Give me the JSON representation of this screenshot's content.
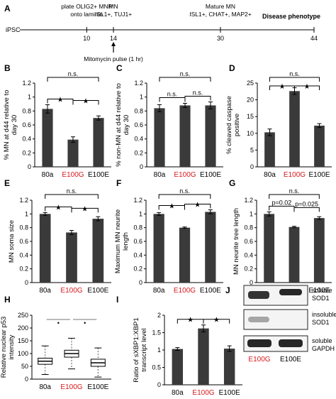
{
  "colors": {
    "bar": "#3a3a3a",
    "axis": "#000000",
    "mutant_label": "#d7191c",
    "box": "#ffffff"
  },
  "timeline": {
    "panel": "A",
    "start_label": "iPSC",
    "end_label": "Disease phenotype",
    "end_day": 44,
    "days": [
      10,
      14,
      30,
      44
    ],
    "labels_above": [
      {
        "day": 10,
        "lines": [
          "plate OLIG2+ MNP",
          "onto laminin"
        ]
      },
      {
        "day": 14,
        "lines": [
          "MN",
          "ISL1+, TUJ1+"
        ]
      },
      {
        "day": 30,
        "lines": [
          "Mature MN",
          "ISL1+, CHAT+, MAP2+"
        ]
      }
    ],
    "arrow_day": 14,
    "arrow_label": "Mitomycin pulse (1 hr)"
  },
  "chart_data": [
    {
      "panel": "B",
      "type": "bar",
      "ylabel_lines": [
        "% MN at d44 relative to",
        "day 30"
      ],
      "categories": [
        "80a",
        "E100G",
        "E100E"
      ],
      "mutant_index": 1,
      "values": [
        0.83,
        0.39,
        0.7
      ],
      "errors": [
        0.06,
        0.04,
        0.03
      ],
      "ylim": [
        0,
        1.2
      ],
      "ticks": [
        0,
        0.2,
        0.4,
        0.6,
        0.8,
        1.0,
        1.2
      ],
      "tick_labels": [
        "0",
        "0.2",
        "0.4",
        "0.6",
        "0.8",
        "1",
        "1.2"
      ],
      "brackets": [
        {
          "from": 0,
          "to": 1,
          "label": "★",
          "level": 1
        },
        {
          "from": 1,
          "to": 2,
          "label": "★",
          "level": 1
        },
        {
          "from": 0,
          "to": 2,
          "label": "n.s.",
          "level": 2
        }
      ]
    },
    {
      "panel": "C",
      "type": "bar",
      "ylabel_lines": [
        "% non-MN at d44 relative to",
        "day 30"
      ],
      "categories": [
        "80a",
        "E100G",
        "E100E"
      ],
      "mutant_index": 1,
      "values": [
        0.84,
        0.88,
        0.88
      ],
      "errors": [
        0.05,
        0.03,
        0.05
      ],
      "ylim": [
        0,
        1.2
      ],
      "ticks": [
        0,
        0.2,
        0.4,
        0.6,
        0.8,
        1.0,
        1.2
      ],
      "tick_labels": [
        "0",
        "0.2",
        "0.4",
        "0.6",
        "0.8",
        "1",
        "1.2"
      ],
      "brackets": [
        {
          "from": 0,
          "to": 1,
          "label": "n.s.",
          "level": 1
        },
        {
          "from": 1,
          "to": 2,
          "label": "n.s.",
          "level": 1
        },
        {
          "from": 0,
          "to": 2,
          "label": "n.s.",
          "level": 2
        }
      ]
    },
    {
      "panel": "D",
      "type": "bar",
      "ylabel_lines": [
        "% cleaved caspase",
        "positive"
      ],
      "categories": [
        "80a",
        "E100G",
        "E100E"
      ],
      "mutant_index": 1,
      "values": [
        10.3,
        22.6,
        12.3
      ],
      "errors": [
        1.0,
        1.0,
        0.6
      ],
      "ylim": [
        0,
        25
      ],
      "ticks": [
        0,
        5,
        10,
        15,
        20,
        25
      ],
      "tick_labels": [
        "0",
        "5",
        "10",
        "15",
        "20",
        "25"
      ],
      "brackets": [
        {
          "from": 0,
          "to": 1,
          "label": "★",
          "level": 1
        },
        {
          "from": 1,
          "to": 2,
          "label": "★",
          "level": 1
        },
        {
          "from": 0,
          "to": 2,
          "label": "n.s.",
          "level": 2
        }
      ]
    },
    {
      "panel": "E",
      "type": "bar",
      "ylabel_lines": [
        "MN soma size"
      ],
      "categories": [
        "80a",
        "E100G",
        "E100E"
      ],
      "mutant_index": 1,
      "values": [
        1.0,
        0.73,
        0.93
      ],
      "errors": [
        0.02,
        0.03,
        0.03
      ],
      "ylim": [
        0,
        1.2
      ],
      "ticks": [
        0,
        0.2,
        0.4,
        0.6,
        0.8,
        1.0,
        1.2
      ],
      "tick_labels": [
        "0",
        "0.2",
        "0.4",
        "0.6",
        "0.8",
        "1",
        "1.2"
      ],
      "brackets": [
        {
          "from": 0,
          "to": 1,
          "label": "★",
          "level": 1
        },
        {
          "from": 1,
          "to": 2,
          "label": "★",
          "level": 1
        },
        {
          "from": 0,
          "to": 2,
          "label": "n.s.",
          "level": 2
        }
      ]
    },
    {
      "panel": "F",
      "type": "bar",
      "ylabel_lines": [
        "Maximum MN neurite",
        "length"
      ],
      "categories": [
        "80a",
        "E100G",
        "E100E"
      ],
      "mutant_index": 1,
      "values": [
        1.0,
        0.8,
        1.03
      ],
      "errors": [
        0.02,
        0.01,
        0.03
      ],
      "ylim": [
        0,
        1.2
      ],
      "ticks": [
        0,
        0.2,
        0.4,
        0.6,
        0.8,
        1.0,
        1.2
      ],
      "tick_labels": [
        "0",
        "0.2",
        "0.4",
        "0.6",
        "0.8",
        "1",
        "1.2"
      ],
      "brackets": [
        {
          "from": 0,
          "to": 1,
          "label": "★",
          "level": 1
        },
        {
          "from": 1,
          "to": 2,
          "label": "★",
          "level": 1
        },
        {
          "from": 0,
          "to": 2,
          "label": "n.s.",
          "level": 2
        }
      ]
    },
    {
      "panel": "G",
      "type": "bar",
      "ylabel_lines": [
        "MN neurite tree length"
      ],
      "categories": [
        "80a",
        "E100G",
        "E100E"
      ],
      "mutant_index": 1,
      "values": [
        1.0,
        0.81,
        0.94
      ],
      "errors": [
        0.03,
        0.01,
        0.02
      ],
      "ylim": [
        0,
        1.2
      ],
      "ticks": [
        0,
        0.2,
        0.4,
        0.6,
        0.8,
        1.0,
        1.2
      ],
      "tick_labels": [
        "0",
        "0.2",
        "0.4",
        "0.6",
        "0.8",
        "1",
        "1.2"
      ],
      "brackets": [
        {
          "from": 0,
          "to": 1,
          "label": "p=0.02",
          "level": 1
        },
        {
          "from": 1,
          "to": 2,
          "label": "p=0.025",
          "level": 1
        },
        {
          "from": 0,
          "to": 2,
          "label": "n.s.",
          "level": 2
        }
      ]
    },
    {
      "panel": "H",
      "type": "box",
      "ylabel_lines": [
        "Relative nuclear p53",
        "intensity"
      ],
      "categories": [
        "80a",
        "E100G",
        "E100E"
      ],
      "mutant_index": 1,
      "ylim": [
        0,
        250
      ],
      "ticks": [
        0,
        50,
        100,
        150,
        200,
        250
      ],
      "tick_labels": [
        "0",
        "50",
        "100",
        "150",
        "200",
        "250"
      ],
      "boxes": [
        {
          "min": 18,
          "q1": 58,
          "median": 70,
          "q3": 82,
          "max": 130
        },
        {
          "min": 40,
          "q1": 86,
          "median": 100,
          "q3": 113,
          "max": 160
        },
        {
          "min": 8,
          "q1": 50,
          "median": 64,
          "q3": 78,
          "max": 122
        }
      ],
      "brackets": [
        {
          "from": 0,
          "to": 1,
          "label": "•",
          "level": 1
        },
        {
          "from": 1,
          "to": 2,
          "label": "•",
          "level": 1
        }
      ]
    },
    {
      "panel": "I",
      "type": "bar",
      "ylabel_lines": [
        "Ratio of sXBP1:XBP1",
        "transcript level"
      ],
      "categories": [
        "80a",
        "E100G",
        "E100E"
      ],
      "mutant_index": 1,
      "values": [
        1.03,
        1.62,
        1.04
      ],
      "errors": [
        0.04,
        0.1,
        0.08
      ],
      "ylim": [
        0,
        2
      ],
      "ticks": [
        0,
        0.5,
        1.0,
        1.5,
        2.0
      ],
      "tick_labels": [
        "0",
        "0.5",
        "1",
        "1.5",
        "2"
      ],
      "brackets": [
        {
          "from": 0,
          "to": 1,
          "label": "★",
          "level": 1
        },
        {
          "from": 1,
          "to": 2,
          "label": "★",
          "level": 1
        }
      ]
    }
  ],
  "blot": {
    "panel": "J",
    "rows": [
      {
        "label_lines": [
          "soluble",
          "SOD1"
        ]
      },
      {
        "label_lines": [
          "insoluble",
          "SOD1"
        ]
      },
      {
        "label_lines": [
          "soluble",
          "GAPDH"
        ]
      }
    ],
    "lanes": [
      "E100G",
      "E100E"
    ],
    "mutant_index": 0
  }
}
